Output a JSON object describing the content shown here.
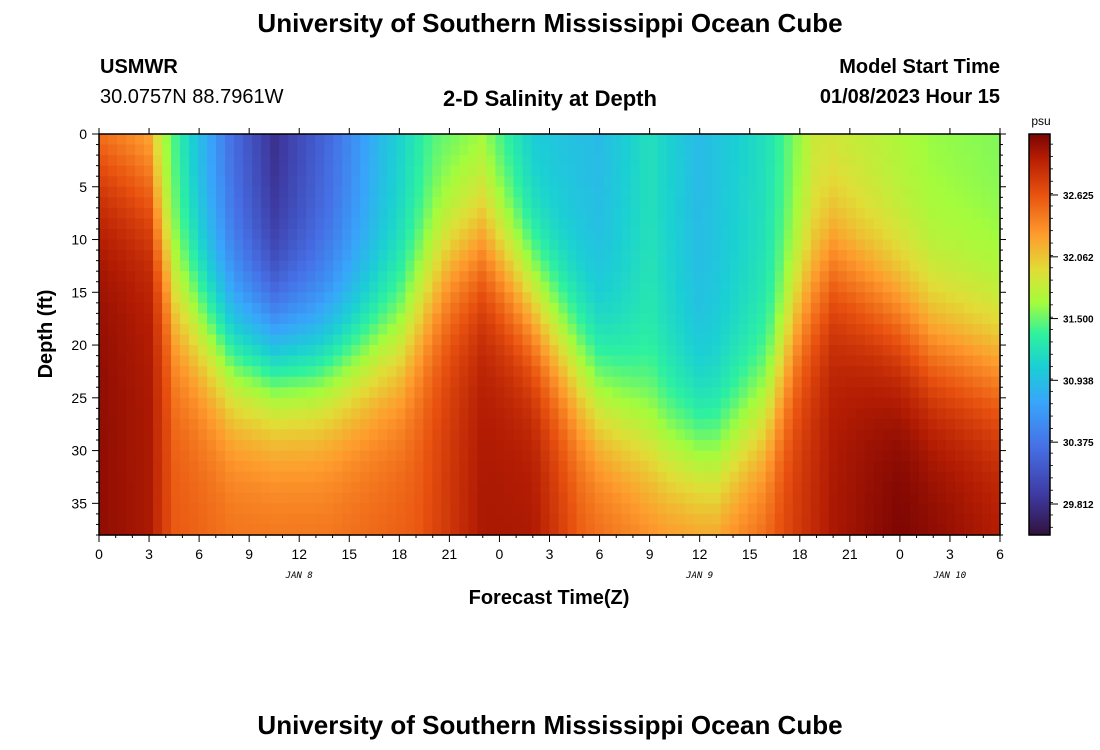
{
  "header": {
    "title": "University of Southern Mississippi Ocean Cube",
    "station": "USMWR",
    "coords": "30.0757N  88.7961W",
    "plot_title": "2-D Salinity at Depth",
    "model_label": "Model Start Time",
    "model_time": "01/08/2023 Hour 15"
  },
  "footer": {
    "title": "University of Southern Mississippi Ocean Cube"
  },
  "chart_data": {
    "type": "heatmap",
    "title": "2-D Salinity at Depth",
    "xlabel": "Forecast Time(Z)",
    "ylabel": "Depth (ft)",
    "x_tick_labels": [
      "0",
      "3",
      "6",
      "9",
      "12",
      "15",
      "18",
      "21",
      "0",
      "3",
      "6",
      "9",
      "12",
      "15",
      "18",
      "21",
      "0",
      "3",
      "6"
    ],
    "date_labels": [
      {
        "label": "JAN 8",
        "hour": 12
      },
      {
        "label": "JAN 9",
        "hour": 36
      },
      {
        "label": "JAN 10",
        "hour": 51
      }
    ],
    "x_range_hours": [
      0,
      54
    ],
    "y_ticks": [
      0,
      5,
      10,
      15,
      20,
      25,
      30,
      35
    ],
    "y_range_ft": [
      0,
      38
    ],
    "colorbar": {
      "unit": "psu",
      "ticks": [
        "32.625",
        "32.062",
        "31.500",
        "30.938",
        "30.375",
        "29.812"
      ],
      "tick_values": [
        32.625,
        32.062,
        31.5,
        30.938,
        30.375,
        29.812
      ],
      "range": [
        29.53,
        33.18
      ]
    },
    "surface_salinity": [
      {
        "t": 0,
        "psu": 32.1
      },
      {
        "t": 2,
        "psu": 32.0
      },
      {
        "t": 3,
        "psu": 31.9
      },
      {
        "t": 4.5,
        "psu": 31.4
      },
      {
        "t": 6,
        "psu": 30.9
      },
      {
        "t": 8,
        "psu": 30.3
      },
      {
        "t": 10.5,
        "psu": 29.8
      },
      {
        "t": 14,
        "psu": 30.3
      },
      {
        "t": 17,
        "psu": 30.9
      },
      {
        "t": 20,
        "psu": 31.4
      },
      {
        "t": 23,
        "psu": 31.5
      },
      {
        "t": 26,
        "psu": 31.0
      },
      {
        "t": 30,
        "psu": 30.9
      },
      {
        "t": 33,
        "psu": 31.2
      },
      {
        "t": 36,
        "psu": 30.9
      },
      {
        "t": 40,
        "psu": 31.2
      },
      {
        "t": 43,
        "psu": 31.8
      },
      {
        "t": 47,
        "psu": 31.7
      },
      {
        "t": 50,
        "psu": 31.6
      },
      {
        "t": 54,
        "psu": 31.55
      }
    ],
    "bottom_salinity": [
      {
        "t": 0,
        "psu": 33.1
      },
      {
        "t": 3,
        "psu": 33.0
      },
      {
        "t": 4.5,
        "psu": 32.6
      },
      {
        "t": 8,
        "psu": 32.5
      },
      {
        "t": 14,
        "psu": 32.5
      },
      {
        "t": 19,
        "psu": 32.6
      },
      {
        "t": 23,
        "psu": 33.0
      },
      {
        "t": 26,
        "psu": 33.0
      },
      {
        "t": 29,
        "psu": 32.6
      },
      {
        "t": 33,
        "psu": 32.45
      },
      {
        "t": 37,
        "psu": 32.45
      },
      {
        "t": 40,
        "psu": 32.6
      },
      {
        "t": 44,
        "psu": 33.0
      },
      {
        "t": 48,
        "psu": 33.18
      },
      {
        "t": 51,
        "psu": 33.1
      },
      {
        "t": 54,
        "psu": 33.0
      }
    ],
    "halocline_depth_ft": [
      {
        "t": 0,
        "d": 2
      },
      {
        "t": 3,
        "d": 4
      },
      {
        "t": 4.5,
        "d": 16
      },
      {
        "t": 8,
        "d": 21
      },
      {
        "t": 13,
        "d": 22
      },
      {
        "t": 18,
        "d": 20
      },
      {
        "t": 21,
        "d": 12
      },
      {
        "t": 23,
        "d": 10
      },
      {
        "t": 26,
        "d": 16
      },
      {
        "t": 30,
        "d": 25
      },
      {
        "t": 34,
        "d": 30
      },
      {
        "t": 37,
        "d": 31
      },
      {
        "t": 40,
        "d": 27
      },
      {
        "t": 42,
        "d": 17
      },
      {
        "t": 44,
        "d": 12
      },
      {
        "t": 47,
        "d": 16
      },
      {
        "t": 50,
        "d": 20
      },
      {
        "t": 54,
        "d": 22
      }
    ]
  }
}
